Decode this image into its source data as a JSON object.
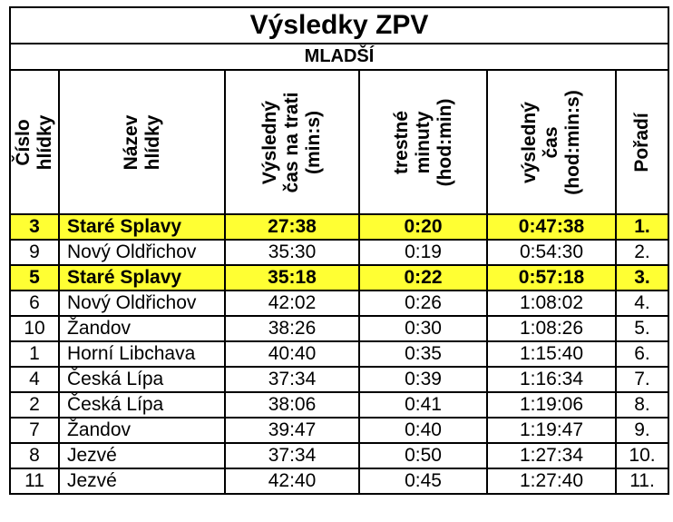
{
  "title": "Výsledky ZPV",
  "category": "MLADŠÍ",
  "headers": [
    [
      "Číslo",
      "hlídky"
    ],
    [
      "Název",
      "hlídky"
    ],
    [
      "Výsledný",
      "čas na trati",
      "(min:s)"
    ],
    [
      "trestné",
      "minuty",
      "(hod:min)"
    ],
    [
      "výsledný",
      "čas",
      "(hod:min:s)"
    ],
    [
      "Pořadí"
    ]
  ],
  "highlight_color": "#ffff33",
  "rows": [
    {
      "num": "3",
      "team": "Staré Splavy",
      "track": "27:38",
      "penalty": "0:20",
      "total": "0:47:38",
      "rank": "1.",
      "highlight": true
    },
    {
      "num": "9",
      "team": "Nový Oldřichov",
      "track": "35:30",
      "penalty": "0:19",
      "total": "0:54:30",
      "rank": "2.",
      "highlight": false
    },
    {
      "num": "5",
      "team": "Staré Splavy",
      "track": "35:18",
      "penalty": "0:22",
      "total": "0:57:18",
      "rank": "3.",
      "highlight": true
    },
    {
      "num": "6",
      "team": "Nový Oldřichov",
      "track": "42:02",
      "penalty": "0:26",
      "total": "1:08:02",
      "rank": "4.",
      "highlight": false
    },
    {
      "num": "10",
      "team": "Žandov",
      "track": "38:26",
      "penalty": "0:30",
      "total": "1:08:26",
      "rank": "5.",
      "highlight": false
    },
    {
      "num": "1",
      "team": "Horní Libchava",
      "track": "40:40",
      "penalty": "0:35",
      "total": "1:15:40",
      "rank": "6.",
      "highlight": false
    },
    {
      "num": "4",
      "team": "Česká Lípa",
      "track": "37:34",
      "penalty": "0:39",
      "total": "1:16:34",
      "rank": "7.",
      "highlight": false
    },
    {
      "num": "2",
      "team": "Česká Lípa",
      "track": "38:06",
      "penalty": "0:41",
      "total": "1:19:06",
      "rank": "8.",
      "highlight": false
    },
    {
      "num": "7",
      "team": "Žandov",
      "track": "39:47",
      "penalty": "0:40",
      "total": "1:19:47",
      "rank": "9.",
      "highlight": false
    },
    {
      "num": "8",
      "team": "Jezvé",
      "track": "37:34",
      "penalty": "0:50",
      "total": "1:27:34",
      "rank": "10.",
      "highlight": false
    },
    {
      "num": "11",
      "team": "Jezvé",
      "track": "42:40",
      "penalty": "0:45",
      "total": "1:27:40",
      "rank": "11.",
      "highlight": false
    }
  ]
}
